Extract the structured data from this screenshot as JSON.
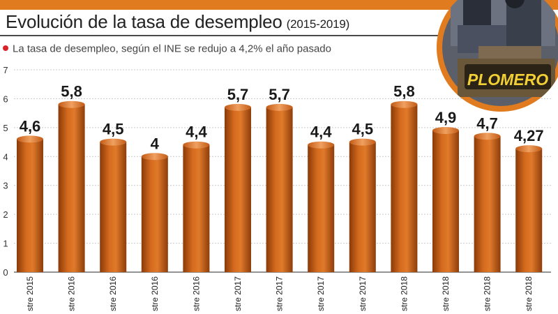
{
  "header": {
    "title": "Evolución de la tasa de desempleo",
    "years": "(2015-2019)",
    "subtitle": "La tasa de desempleo, según el INE se redujo a 4,2% el año pasado"
  },
  "photo": {
    "sign_text": "PLOMERO"
  },
  "colors": {
    "accent": "#e07b1f",
    "bar": "#c65d14",
    "bullet": "#d8232a"
  },
  "chart_data": {
    "type": "bar",
    "title": "Evolución de la tasa de desempleo (2015-2019)",
    "xlabel": "",
    "ylabel": "",
    "ylim": [
      0,
      7
    ],
    "yticks": [
      "0",
      "1",
      "2",
      "3",
      "4",
      "5",
      "6",
      "7"
    ],
    "grid": true,
    "categories": [
      "stre 2015",
      "stre 2016",
      "stre 2016",
      "stre 2016",
      "stre 2016",
      "stre 2017",
      "stre 2017",
      "stre 2017",
      "stre 2017",
      "stre 2018",
      "stre 2018",
      "stre 2018",
      "stre 2018"
    ],
    "values": [
      4.6,
      5.8,
      4.5,
      4,
      4.4,
      5.7,
      5.7,
      4.4,
      4.5,
      5.8,
      4.9,
      4.7,
      4.27
    ],
    "value_labels": [
      "4,6",
      "5,8",
      "4,5",
      "4",
      "4,4",
      "5,7",
      "5,7",
      "4,4",
      "4,5",
      "5,8",
      "4,9",
      "4,7",
      "4,27"
    ]
  }
}
